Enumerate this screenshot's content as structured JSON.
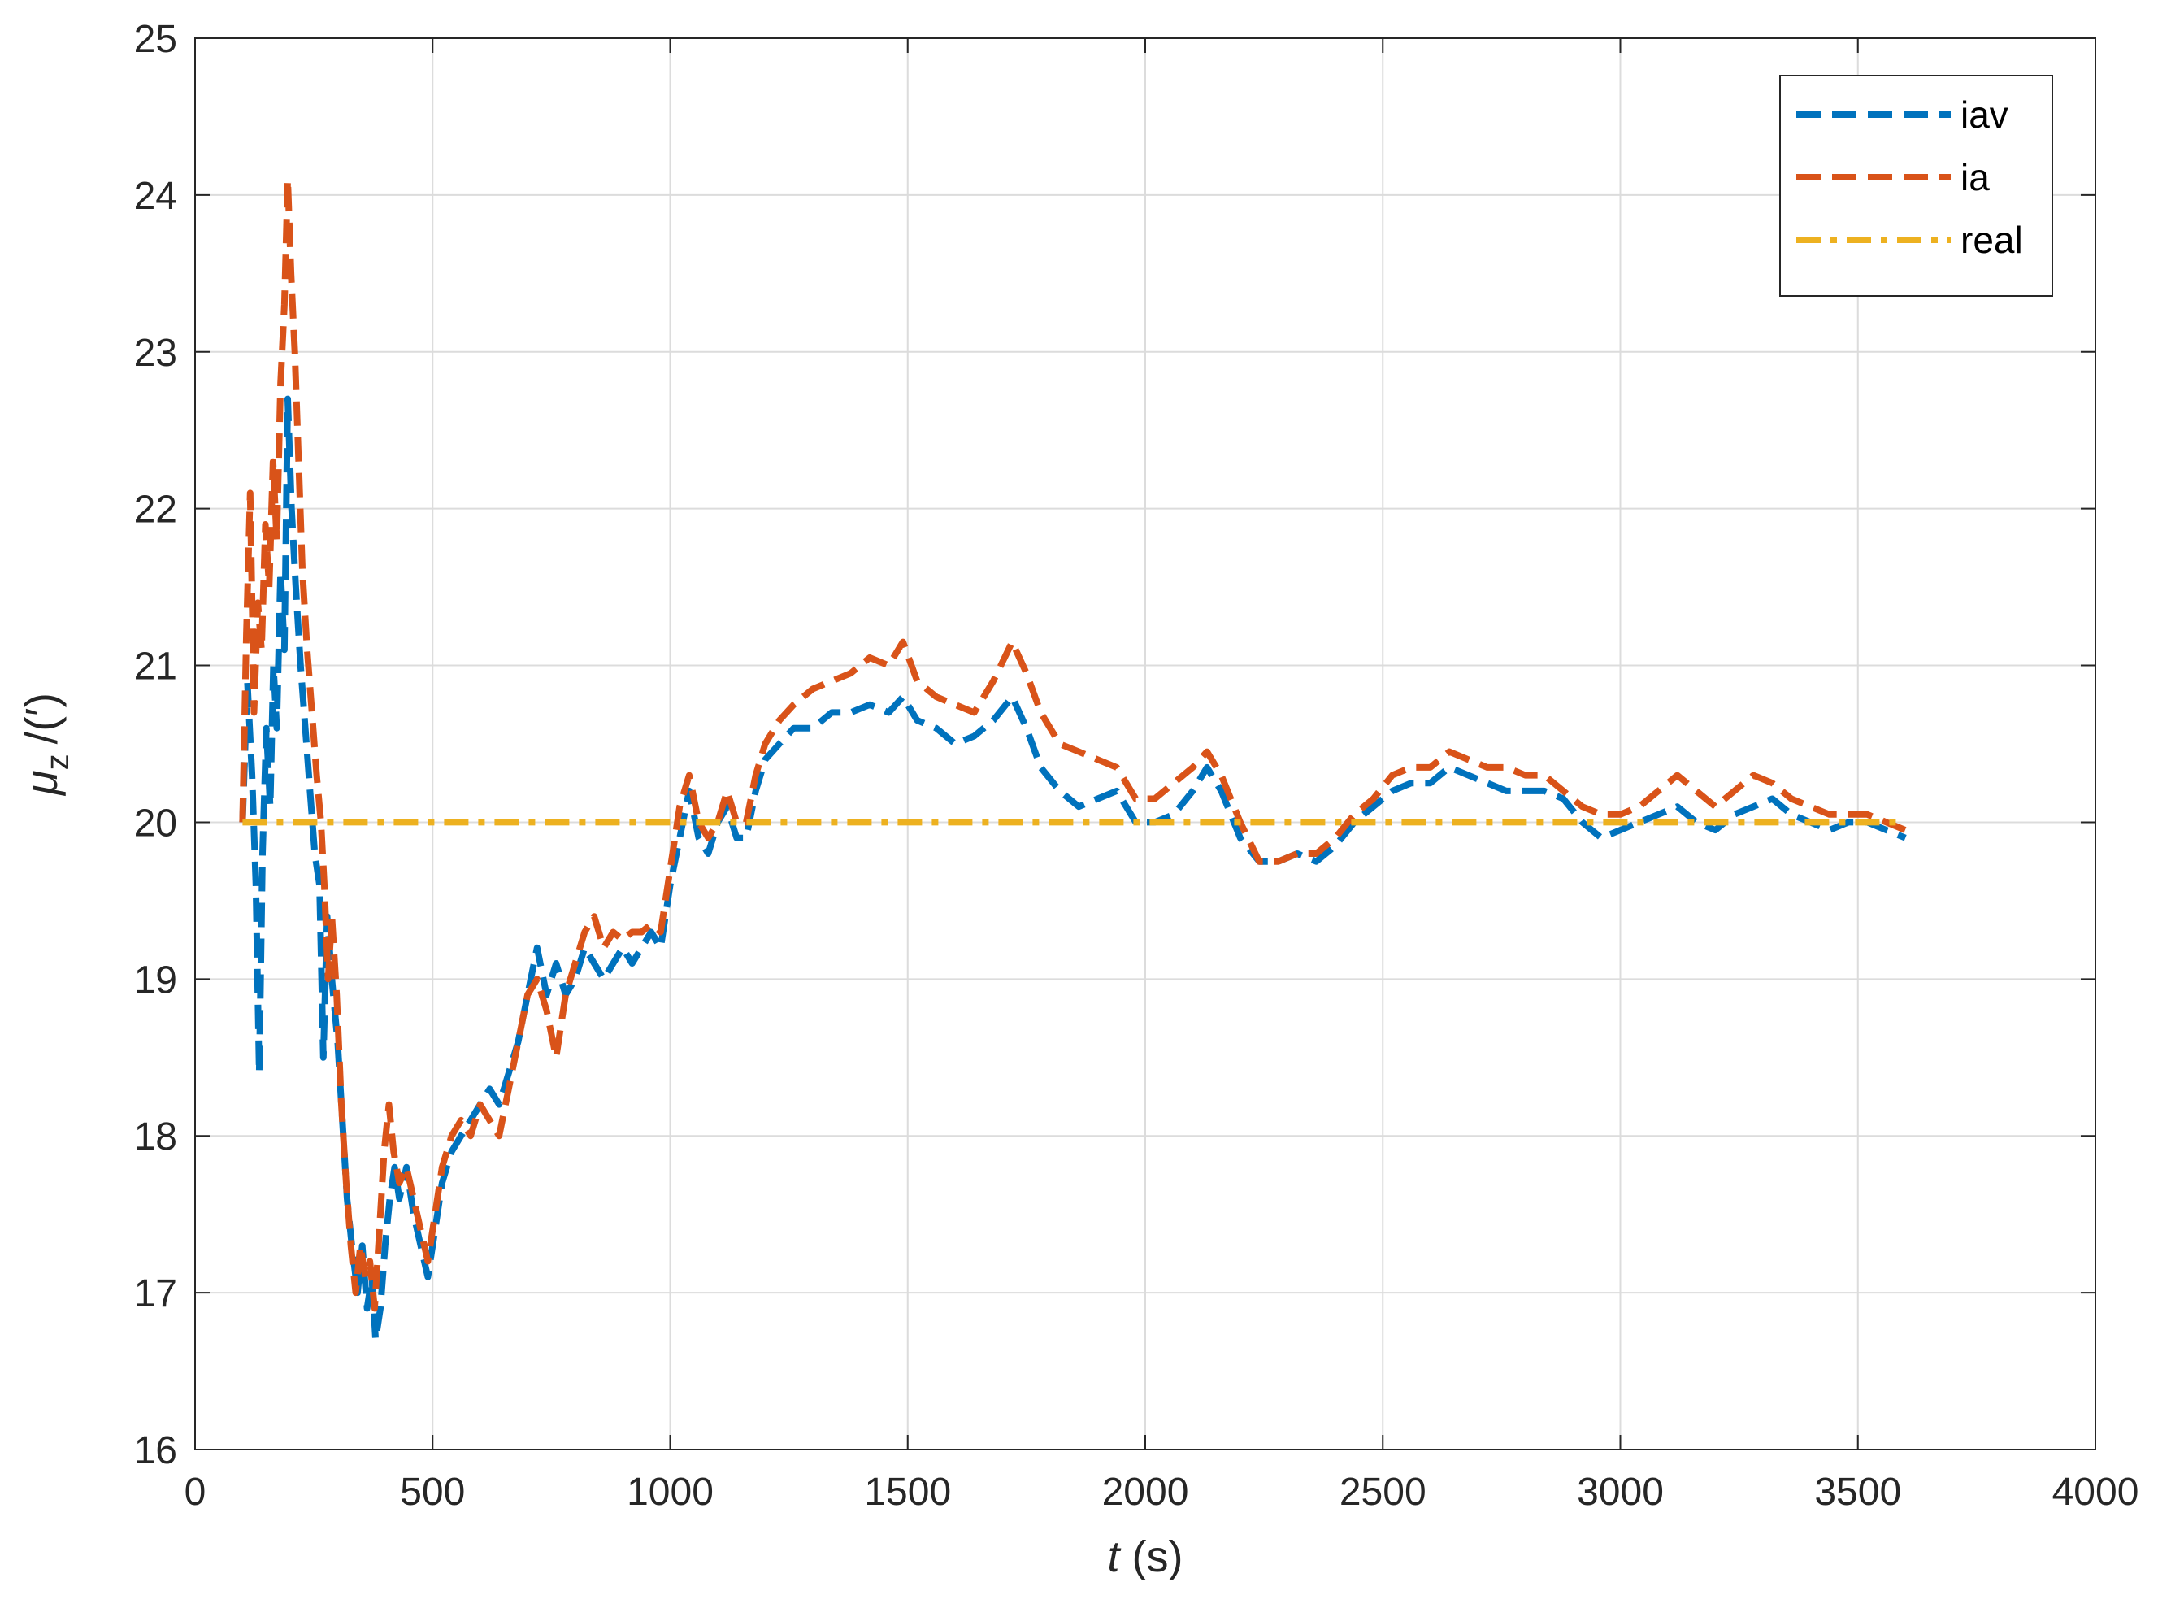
{
  "chart_data": {
    "type": "line",
    "xlabel": {
      "var": "t",
      "unit": " (s)"
    },
    "ylabel": {
      "var": "μ",
      "sub": "z",
      "unit": "/(′)"
    },
    "xlim": [
      0,
      4000
    ],
    "ylim": [
      16,
      25
    ],
    "xticks": [
      0,
      500,
      1000,
      1500,
      2000,
      2500,
      3000,
      3500,
      4000
    ],
    "yticks": [
      16,
      17,
      18,
      19,
      20,
      21,
      22,
      23,
      24,
      25
    ],
    "grid": true,
    "legend_position": "top-right",
    "series": [
      {
        "name": "iav",
        "color": "#0072BD",
        "dash": "dashed",
        "points": [
          [
            100,
            20.0
          ],
          [
            110,
            20.9
          ],
          [
            120,
            20.3
          ],
          [
            128,
            19.6
          ],
          [
            135,
            18.4
          ],
          [
            142,
            19.8
          ],
          [
            150,
            20.6
          ],
          [
            158,
            20.1
          ],
          [
            165,
            21.0
          ],
          [
            172,
            20.6
          ],
          [
            180,
            21.6
          ],
          [
            188,
            21.1
          ],
          [
            195,
            22.7
          ],
          [
            203,
            22.0
          ],
          [
            212,
            21.5
          ],
          [
            222,
            21.0
          ],
          [
            232,
            20.6
          ],
          [
            242,
            20.2
          ],
          [
            252,
            19.8
          ],
          [
            262,
            19.6
          ],
          [
            270,
            18.5
          ],
          [
            278,
            19.4
          ],
          [
            288,
            19.0
          ],
          [
            300,
            18.6
          ],
          [
            310,
            18.1
          ],
          [
            320,
            17.6
          ],
          [
            330,
            17.3
          ],
          [
            342,
            17.0
          ],
          [
            352,
            17.3
          ],
          [
            362,
            16.9
          ],
          [
            372,
            17.1
          ],
          [
            380,
            16.7
          ],
          [
            390,
            16.9
          ],
          [
            400,
            17.3
          ],
          [
            410,
            17.6
          ],
          [
            420,
            17.8
          ],
          [
            430,
            17.6
          ],
          [
            445,
            17.8
          ],
          [
            460,
            17.5
          ],
          [
            475,
            17.3
          ],
          [
            490,
            17.1
          ],
          [
            505,
            17.4
          ],
          [
            520,
            17.7
          ],
          [
            540,
            17.9
          ],
          [
            560,
            18.0
          ],
          [
            580,
            18.1
          ],
          [
            600,
            18.2
          ],
          [
            620,
            18.3
          ],
          [
            640,
            18.2
          ],
          [
            660,
            18.4
          ],
          [
            680,
            18.6
          ],
          [
            700,
            18.9
          ],
          [
            720,
            19.2
          ],
          [
            740,
            18.9
          ],
          [
            760,
            19.1
          ],
          [
            780,
            18.9
          ],
          [
            800,
            19.0
          ],
          [
            820,
            19.2
          ],
          [
            840,
            19.1
          ],
          [
            860,
            19.0
          ],
          [
            880,
            19.1
          ],
          [
            900,
            19.2
          ],
          [
            920,
            19.1
          ],
          [
            940,
            19.2
          ],
          [
            960,
            19.3
          ],
          [
            980,
            19.2
          ],
          [
            1000,
            19.6
          ],
          [
            1020,
            19.9
          ],
          [
            1040,
            20.2
          ],
          [
            1060,
            19.9
          ],
          [
            1080,
            19.8
          ],
          [
            1100,
            20.0
          ],
          [
            1120,
            20.1
          ],
          [
            1140,
            19.9
          ],
          [
            1160,
            19.9
          ],
          [
            1180,
            20.2
          ],
          [
            1200,
            20.4
          ],
          [
            1230,
            20.5
          ],
          [
            1260,
            20.6
          ],
          [
            1300,
            20.6
          ],
          [
            1340,
            20.7
          ],
          [
            1380,
            20.7
          ],
          [
            1420,
            20.75
          ],
          [
            1460,
            20.7
          ],
          [
            1490,
            20.8
          ],
          [
            1520,
            20.65
          ],
          [
            1560,
            20.6
          ],
          [
            1600,
            20.5
          ],
          [
            1640,
            20.55
          ],
          [
            1680,
            20.65
          ],
          [
            1720,
            20.8
          ],
          [
            1750,
            20.6
          ],
          [
            1780,
            20.35
          ],
          [
            1820,
            20.2
          ],
          [
            1860,
            20.1
          ],
          [
            1900,
            20.15
          ],
          [
            1940,
            20.2
          ],
          [
            1980,
            20.0
          ],
          [
            2020,
            20.0
          ],
          [
            2060,
            20.05
          ],
          [
            2100,
            20.2
          ],
          [
            2130,
            20.35
          ],
          [
            2160,
            20.2
          ],
          [
            2200,
            19.9
          ],
          [
            2240,
            19.75
          ],
          [
            2280,
            19.75
          ],
          [
            2320,
            19.8
          ],
          [
            2360,
            19.75
          ],
          [
            2400,
            19.85
          ],
          [
            2440,
            20.0
          ],
          [
            2480,
            20.1
          ],
          [
            2520,
            20.2
          ],
          [
            2560,
            20.25
          ],
          [
            2600,
            20.25
          ],
          [
            2640,
            20.35
          ],
          [
            2680,
            20.3
          ],
          [
            2720,
            20.25
          ],
          [
            2760,
            20.2
          ],
          [
            2800,
            20.2
          ],
          [
            2840,
            20.2
          ],
          [
            2880,
            20.15
          ],
          [
            2920,
            20.0
          ],
          [
            2960,
            19.9
          ],
          [
            3000,
            19.95
          ],
          [
            3040,
            20.0
          ],
          [
            3080,
            20.05
          ],
          [
            3120,
            20.1
          ],
          [
            3160,
            20.0
          ],
          [
            3200,
            19.95
          ],
          [
            3240,
            20.05
          ],
          [
            3280,
            20.1
          ],
          [
            3320,
            20.15
          ],
          [
            3360,
            20.05
          ],
          [
            3400,
            20.0
          ],
          [
            3440,
            19.95
          ],
          [
            3480,
            20.0
          ],
          [
            3520,
            20.0
          ],
          [
            3560,
            19.95
          ],
          [
            3600,
            19.9
          ]
        ]
      },
      {
        "name": "ia",
        "color": "#D95319",
        "dash": "dashed",
        "points": [
          [
            100,
            20.0
          ],
          [
            108,
            21.2
          ],
          [
            116,
            22.1
          ],
          [
            124,
            20.7
          ],
          [
            132,
            21.4
          ],
          [
            140,
            21.1
          ],
          [
            148,
            21.9
          ],
          [
            156,
            21.5
          ],
          [
            164,
            22.3
          ],
          [
            172,
            21.8
          ],
          [
            180,
            22.8
          ],
          [
            188,
            23.3
          ],
          [
            195,
            24.1
          ],
          [
            202,
            23.5
          ],
          [
            210,
            23.0
          ],
          [
            218,
            22.3
          ],
          [
            226,
            21.6
          ],
          [
            236,
            21.1
          ],
          [
            246,
            20.7
          ],
          [
            256,
            20.3
          ],
          [
            265,
            20.0
          ],
          [
            272,
            19.6
          ],
          [
            280,
            19.0
          ],
          [
            288,
            19.4
          ],
          [
            298,
            18.9
          ],
          [
            308,
            18.2
          ],
          [
            318,
            17.7
          ],
          [
            328,
            17.3
          ],
          [
            338,
            17.0
          ],
          [
            348,
            17.3
          ],
          [
            358,
            17.1
          ],
          [
            368,
            17.2
          ],
          [
            378,
            16.9
          ],
          [
            388,
            17.4
          ],
          [
            398,
            17.9
          ],
          [
            408,
            18.2
          ],
          [
            418,
            17.9
          ],
          [
            430,
            17.7
          ],
          [
            445,
            17.8
          ],
          [
            460,
            17.6
          ],
          [
            475,
            17.4
          ],
          [
            490,
            17.2
          ],
          [
            505,
            17.5
          ],
          [
            520,
            17.8
          ],
          [
            540,
            18.0
          ],
          [
            560,
            18.1
          ],
          [
            580,
            18.0
          ],
          [
            600,
            18.2
          ],
          [
            620,
            18.1
          ],
          [
            640,
            18.0
          ],
          [
            660,
            18.3
          ],
          [
            680,
            18.6
          ],
          [
            700,
            18.9
          ],
          [
            720,
            19.0
          ],
          [
            740,
            18.8
          ],
          [
            760,
            18.5
          ],
          [
            780,
            18.9
          ],
          [
            800,
            19.1
          ],
          [
            820,
            19.3
          ],
          [
            840,
            19.4
          ],
          [
            860,
            19.2
          ],
          [
            880,
            19.3
          ],
          [
            900,
            19.25
          ],
          [
            920,
            19.3
          ],
          [
            940,
            19.3
          ],
          [
            960,
            19.35
          ],
          [
            980,
            19.3
          ],
          [
            1000,
            19.7
          ],
          [
            1020,
            20.1
          ],
          [
            1040,
            20.3
          ],
          [
            1060,
            20.0
          ],
          [
            1080,
            19.9
          ],
          [
            1100,
            20.0
          ],
          [
            1120,
            20.2
          ],
          [
            1140,
            20.0
          ],
          [
            1160,
            20.0
          ],
          [
            1180,
            20.3
          ],
          [
            1200,
            20.5
          ],
          [
            1230,
            20.65
          ],
          [
            1260,
            20.75
          ],
          [
            1300,
            20.85
          ],
          [
            1340,
            20.9
          ],
          [
            1380,
            20.95
          ],
          [
            1420,
            21.05
          ],
          [
            1460,
            21.0
          ],
          [
            1490,
            21.15
          ],
          [
            1520,
            20.9
          ],
          [
            1560,
            20.8
          ],
          [
            1600,
            20.75
          ],
          [
            1640,
            20.7
          ],
          [
            1680,
            20.9
          ],
          [
            1720,
            21.15
          ],
          [
            1750,
            20.95
          ],
          [
            1780,
            20.7
          ],
          [
            1820,
            20.5
          ],
          [
            1860,
            20.45
          ],
          [
            1900,
            20.4
          ],
          [
            1940,
            20.35
          ],
          [
            1980,
            20.15
          ],
          [
            2020,
            20.15
          ],
          [
            2060,
            20.25
          ],
          [
            2100,
            20.35
          ],
          [
            2130,
            20.45
          ],
          [
            2160,
            20.3
          ],
          [
            2200,
            20.0
          ],
          [
            2240,
            19.75
          ],
          [
            2280,
            19.75
          ],
          [
            2320,
            19.8
          ],
          [
            2360,
            19.8
          ],
          [
            2400,
            19.9
          ],
          [
            2440,
            20.05
          ],
          [
            2480,
            20.15
          ],
          [
            2520,
            20.3
          ],
          [
            2560,
            20.35
          ],
          [
            2600,
            20.35
          ],
          [
            2640,
            20.45
          ],
          [
            2680,
            20.4
          ],
          [
            2720,
            20.35
          ],
          [
            2760,
            20.35
          ],
          [
            2800,
            20.3
          ],
          [
            2840,
            20.3
          ],
          [
            2880,
            20.2
          ],
          [
            2920,
            20.1
          ],
          [
            2960,
            20.05
          ],
          [
            3000,
            20.05
          ],
          [
            3040,
            20.1
          ],
          [
            3080,
            20.2
          ],
          [
            3120,
            20.3
          ],
          [
            3160,
            20.2
          ],
          [
            3200,
            20.1
          ],
          [
            3240,
            20.2
          ],
          [
            3280,
            20.3
          ],
          [
            3320,
            20.25
          ],
          [
            3360,
            20.15
          ],
          [
            3400,
            20.1
          ],
          [
            3440,
            20.05
          ],
          [
            3480,
            20.05
          ],
          [
            3520,
            20.05
          ],
          [
            3560,
            20.0
          ],
          [
            3600,
            19.95
          ]
        ]
      },
      {
        "name": "real",
        "color": "#EDB120",
        "dash": "dashdot",
        "points": [
          [
            100,
            20.0
          ],
          [
            3600,
            20.0
          ]
        ]
      }
    ]
  }
}
